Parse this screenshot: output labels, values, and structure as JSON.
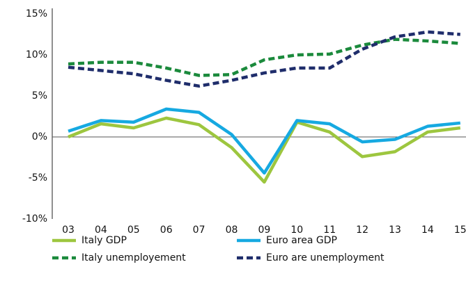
{
  "chart_data": {
    "type": "line",
    "categories": [
      "03",
      "04",
      "05",
      "06",
      "07",
      "08",
      "09",
      "10",
      "11",
      "12",
      "13",
      "14",
      "15"
    ],
    "ylim": [
      -10,
      15
    ],
    "yticks": [
      {
        "value": -10,
        "label": "-10%"
      },
      {
        "value": -5,
        "label": "-5%"
      },
      {
        "value": 0,
        "label": "0%"
      },
      {
        "value": 5,
        "label": "5%"
      },
      {
        "value": 10,
        "label": "10%"
      },
      {
        "value": 15,
        "label": "15%"
      }
    ],
    "series": [
      {
        "name": "Italy GDP",
        "color": "#9dc63f",
        "style": "solid",
        "values": [
          0.0,
          1.6,
          1.1,
          2.3,
          1.5,
          -1.3,
          -5.5,
          1.8,
          0.6,
          -2.4,
          -1.8,
          0.6,
          1.1
        ]
      },
      {
        "name": "Euro area GDP",
        "color": "#16a9e1",
        "style": "solid",
        "values": [
          0.7,
          2.0,
          1.8,
          3.4,
          3.0,
          0.3,
          -4.4,
          2.0,
          1.6,
          -0.6,
          -0.3,
          1.3,
          1.7
        ]
      },
      {
        "name": "Italy unemployement",
        "color": "#1b8a3c",
        "style": "dashed",
        "values": [
          8.9,
          9.1,
          9.1,
          8.4,
          7.5,
          7.6,
          9.4,
          10.0,
          10.1,
          11.2,
          11.9,
          11.7,
          11.4
        ]
      },
      {
        "name": "Euro are unemployment",
        "color": "#1f2d6b",
        "style": "dashed",
        "values": [
          8.5,
          8.1,
          7.7,
          6.9,
          6.2,
          6.9,
          7.8,
          8.4,
          8.4,
          10.7,
          12.2,
          12.8,
          12.5
        ]
      }
    ]
  }
}
